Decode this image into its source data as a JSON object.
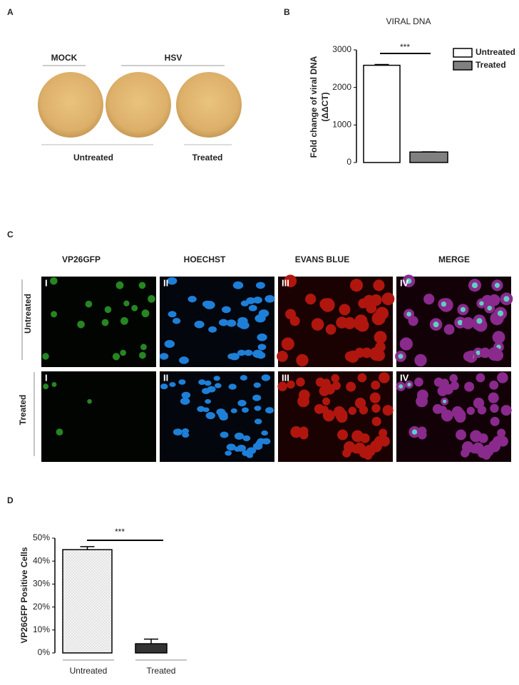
{
  "panel_labels": [
    "A",
    "B",
    "C",
    "D"
  ],
  "panel_a": {
    "groups": [
      "MOCK",
      "HSV"
    ],
    "conditions": [
      "Untreated",
      "Treated"
    ]
  },
  "panel_c": {
    "columns": [
      "VP26GFP",
      "HOECHST",
      "EVANS BLUE",
      "MERGE"
    ],
    "rows": [
      "Untreated",
      "Treated"
    ],
    "image_labels": [
      "I",
      "II",
      "III",
      "IV"
    ]
  },
  "chart_data": [
    {
      "type": "bar",
      "title": "VIRAL DNA",
      "y_label": [
        "Fold change of viral DNA",
        "(ΔΔCT)"
      ],
      "categories": [
        null
      ],
      "series": [
        {
          "name": "Untreated",
          "color": "#ffffff",
          "values": [
            2590
          ],
          "errors": [
            20
          ]
        },
        {
          "name": "Treated",
          "color": "#808080",
          "values": [
            280
          ],
          "errors": [
            5
          ]
        }
      ],
      "ylim": [
        0,
        3000
      ],
      "yticks": [
        0,
        1000,
        2000,
        3000
      ],
      "annotation": "***",
      "legend": "right"
    },
    {
      "type": "bar",
      "y_label": [
        "VP26GFP Positive Cells"
      ],
      "categories": [
        "Untreated",
        "Treated"
      ],
      "values": [
        45,
        4
      ],
      "errors": [
        1.3,
        2
      ],
      "colors": [
        "#f2f2f2",
        "#333333"
      ],
      "ylim": [
        0,
        50
      ],
      "yticks": [
        {
          "value": 0,
          "label": "0%"
        },
        {
          "value": 10,
          "label": "10%"
        },
        {
          "value": 20,
          "label": "20%"
        },
        {
          "value": 30,
          "label": "30%"
        },
        {
          "value": 40,
          "label": "40%"
        },
        {
          "value": 50,
          "label": "50%"
        }
      ],
      "annotation": "***"
    }
  ]
}
